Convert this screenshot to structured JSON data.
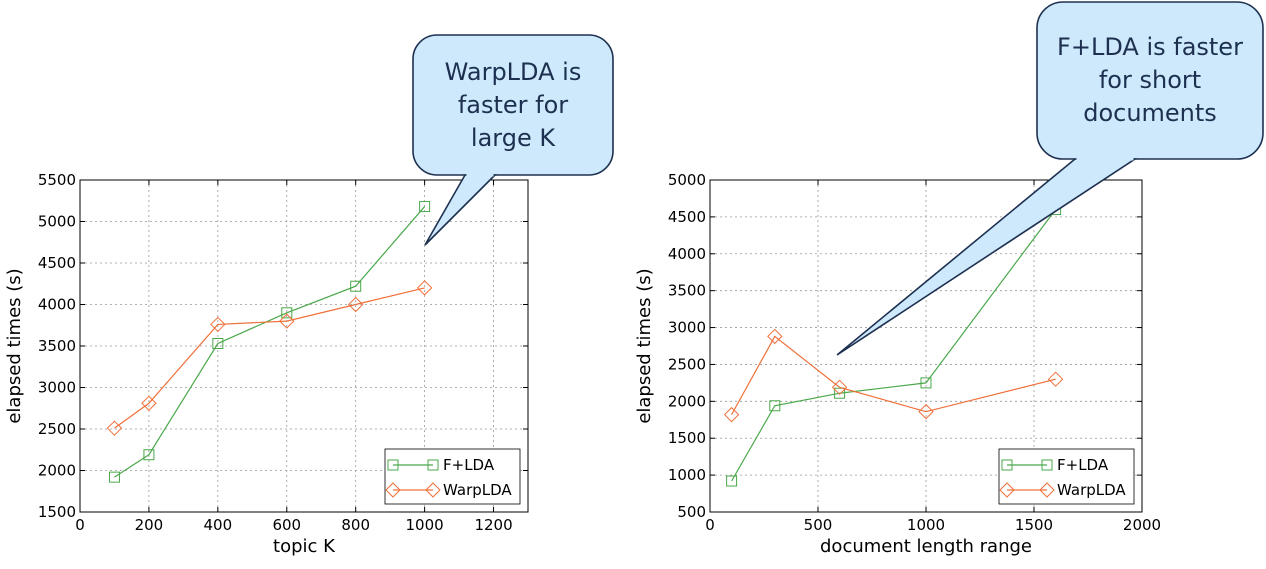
{
  "chart_data": [
    {
      "type": "line",
      "xlabel": "topic K",
      "ylabel": "elapsed times (s)",
      "xlim": [
        0,
        1300
      ],
      "ylim": [
        1500,
        5500
      ],
      "xticks": [
        0,
        200,
        400,
        600,
        800,
        1000,
        1200
      ],
      "yticks": [
        1500,
        2000,
        2500,
        3000,
        3500,
        4000,
        4500,
        5000,
        5500
      ],
      "grid": true,
      "legend_position": "lower-right",
      "series": [
        {
          "name": "F+LDA",
          "color": "#4aa84a",
          "marker": "square",
          "x": [
            100,
            200,
            400,
            600,
            800,
            1000
          ],
          "y": [
            1920,
            2190,
            3530,
            3900,
            4220,
            5180
          ]
        },
        {
          "name": "WarpLDA",
          "color": "#f0703a",
          "marker": "diamond",
          "x": [
            100,
            200,
            400,
            600,
            800,
            1000
          ],
          "y": [
            2510,
            2810,
            3760,
            3800,
            4000,
            4200
          ]
        }
      ],
      "annotation": {
        "text": [
          "WarpLDA is",
          "faster for",
          "large K"
        ]
      }
    },
    {
      "type": "line",
      "xlabel": "document length range",
      "ylabel": "elapsed times (s)",
      "xlim": [
        0,
        2000
      ],
      "ylim": [
        500,
        5000
      ],
      "xticks": [
        0,
        500,
        1000,
        1500,
        2000
      ],
      "yticks": [
        500,
        1000,
        1500,
        2000,
        2500,
        3000,
        3500,
        4000,
        4500,
        5000
      ],
      "grid": true,
      "legend_position": "lower-right",
      "series": [
        {
          "name": "F+LDA",
          "color": "#4aa84a",
          "marker": "square",
          "x": [
            100,
            300,
            600,
            1000,
            1600
          ],
          "y": [
            920,
            1940,
            2110,
            2250,
            4600
          ]
        },
        {
          "name": "WarpLDA",
          "color": "#f0703a",
          "marker": "diamond",
          "x": [
            100,
            300,
            600,
            1000,
            1600
          ],
          "y": [
            1820,
            2880,
            2190,
            1860,
            2300
          ]
        }
      ],
      "annotation": {
        "text": [
          "F+LDA is faster",
          "for short",
          "documents"
        ]
      }
    }
  ]
}
